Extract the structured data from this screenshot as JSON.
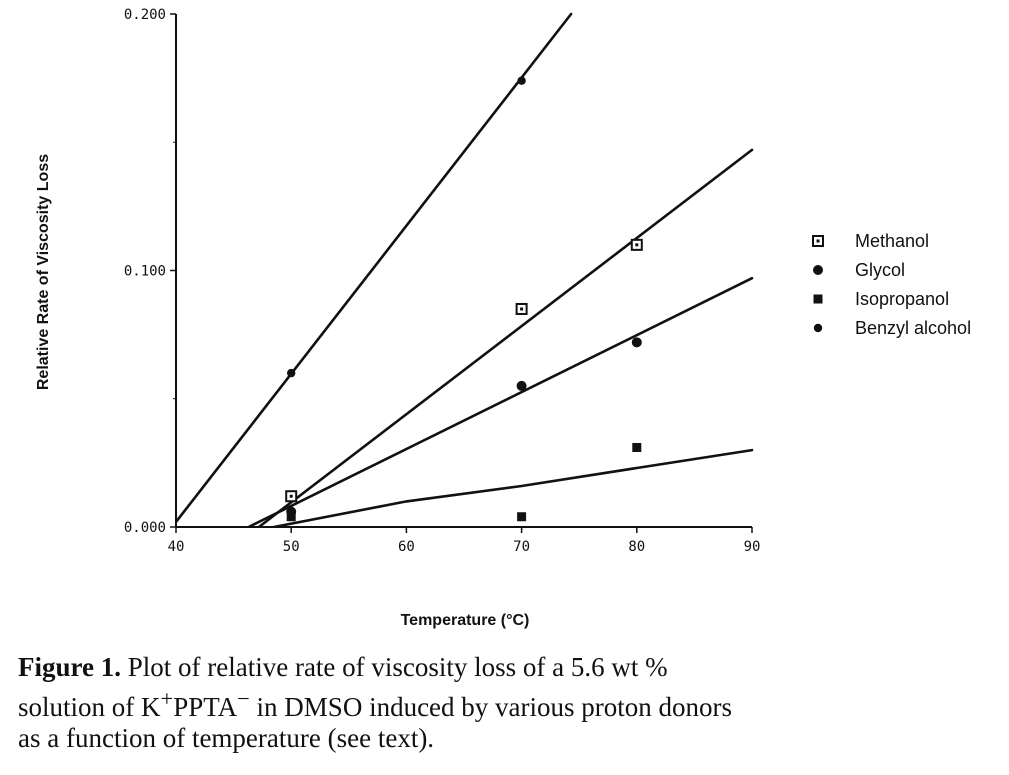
{
  "chart_data": {
    "type": "scatter",
    "xlabel": "Temperature (°C)",
    "ylabel": "Relative Rate of Viscosity Loss",
    "xlim": [
      40,
      90
    ],
    "ylim": [
      0.0,
      0.2
    ],
    "x_ticks": [
      "40",
      "50",
      "60",
      "70",
      "80",
      "90"
    ],
    "y_ticks": [
      "0.000",
      "0.100",
      "0.200"
    ],
    "legend": "right",
    "series": [
      {
        "name": "Methanol",
        "marker": "open-square",
        "points": [
          [
            50,
            0.012
          ],
          [
            70,
            0.085
          ],
          [
            80,
            0.11
          ]
        ],
        "fit": [
          [
            47.2,
            0.0
          ],
          [
            90,
            0.147
          ]
        ]
      },
      {
        "name": "Glycol",
        "marker": "filled-circle",
        "points": [
          [
            50,
            0.006
          ],
          [
            70,
            0.055
          ],
          [
            80,
            0.072
          ]
        ],
        "fit": [
          [
            46.3,
            0.0
          ],
          [
            90,
            0.097
          ]
        ]
      },
      {
        "name": "Isopropanol",
        "marker": "filled-square",
        "points": [
          [
            50,
            0.004
          ],
          [
            70,
            0.004
          ],
          [
            80,
            0.031
          ]
        ],
        "fit": [
          [
            48.5,
            0.0
          ],
          [
            60,
            0.01
          ],
          [
            70,
            0.016
          ],
          [
            80,
            0.023
          ],
          [
            90,
            0.03
          ]
        ]
      },
      {
        "name": "Benzyl alcohol",
        "marker": "filled-circle-small",
        "points": [
          [
            50,
            0.06
          ],
          [
            70,
            0.174
          ]
        ],
        "fit": [
          [
            40,
            0.002
          ],
          [
            74.3,
            0.2
          ]
        ]
      }
    ]
  },
  "caption": {
    "figure_label": "Figure 1.",
    "line1": "Plot of relative rate of viscosity loss of a 5.6 wt %",
    "line2_prefix": "solution of K",
    "line2_sup1": "+",
    "line2_mid": "PPTA",
    "line2_sup2": "−",
    "line2_suffix": " in DMSO induced by various proton donors",
    "line3": "as a function of temperature (see text)."
  }
}
